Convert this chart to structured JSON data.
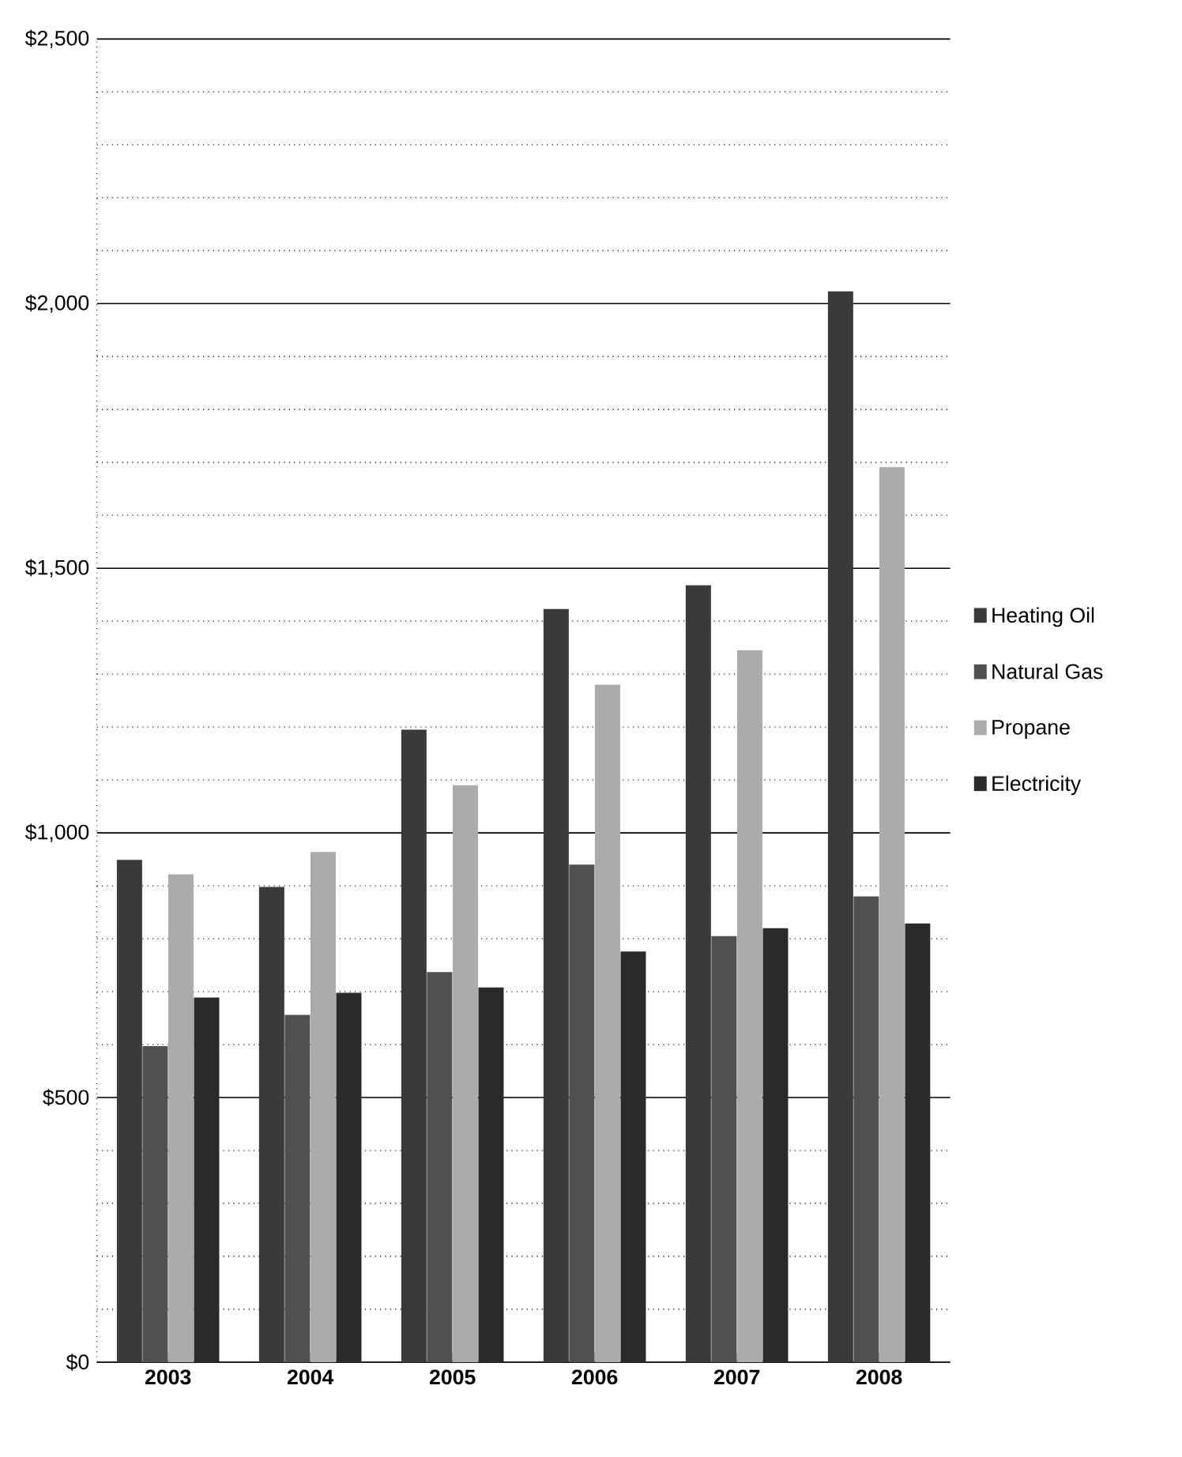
{
  "chart_data": {
    "type": "bar",
    "categories": [
      "2003",
      "2004",
      "2005",
      "2006",
      "2007",
      "2008"
    ],
    "series": [
      {
        "name": "Heating Oil",
        "color": "#3a3a3a",
        "values": [
          949,
          898,
          1195,
          1423,
          1468,
          2023
        ]
      },
      {
        "name": "Natural Gas",
        "color": "#505050",
        "values": [
          597,
          656,
          737,
          940,
          805,
          880
        ]
      },
      {
        "name": "Propane",
        "color": "#ababab",
        "values": [
          922,
          964,
          1090,
          1280,
          1345,
          1691
        ]
      },
      {
        "name": "Electricity",
        "color": "#2a2a2a",
        "values": [
          689,
          698,
          708,
          776,
          820,
          829
        ]
      }
    ],
    "ylim": [
      0,
      2500
    ],
    "yticks": [
      {
        "value": 0,
        "label": "$0"
      },
      {
        "value": 100,
        "label": null
      },
      {
        "value": 200,
        "label": null
      },
      {
        "value": 300,
        "label": null
      },
      {
        "value": 400,
        "label": null
      },
      {
        "value": 500,
        "label": "$500"
      },
      {
        "value": 600,
        "label": null
      },
      {
        "value": 700,
        "label": null
      },
      {
        "value": 800,
        "label": null
      },
      {
        "value": 900,
        "label": null
      },
      {
        "value": 1000,
        "label": "$1,000"
      },
      {
        "value": 1100,
        "label": null
      },
      {
        "value": 1200,
        "label": null
      },
      {
        "value": 1300,
        "label": null
      },
      {
        "value": 1400,
        "label": null
      },
      {
        "value": 1500,
        "label": "$1,500"
      },
      {
        "value": 1600,
        "label": null
      },
      {
        "value": 1700,
        "label": null
      },
      {
        "value": 1800,
        "label": null
      },
      {
        "value": 1900,
        "label": null
      },
      {
        "value": 2000,
        "label": "$2,000"
      },
      {
        "value": 2100,
        "label": null
      },
      {
        "value": 2200,
        "label": null
      },
      {
        "value": 2300,
        "label": null
      },
      {
        "value": 2400,
        "label": null
      },
      {
        "value": 2500,
        "label": "$2,500"
      }
    ],
    "grid": "y",
    "legend": "right"
  }
}
